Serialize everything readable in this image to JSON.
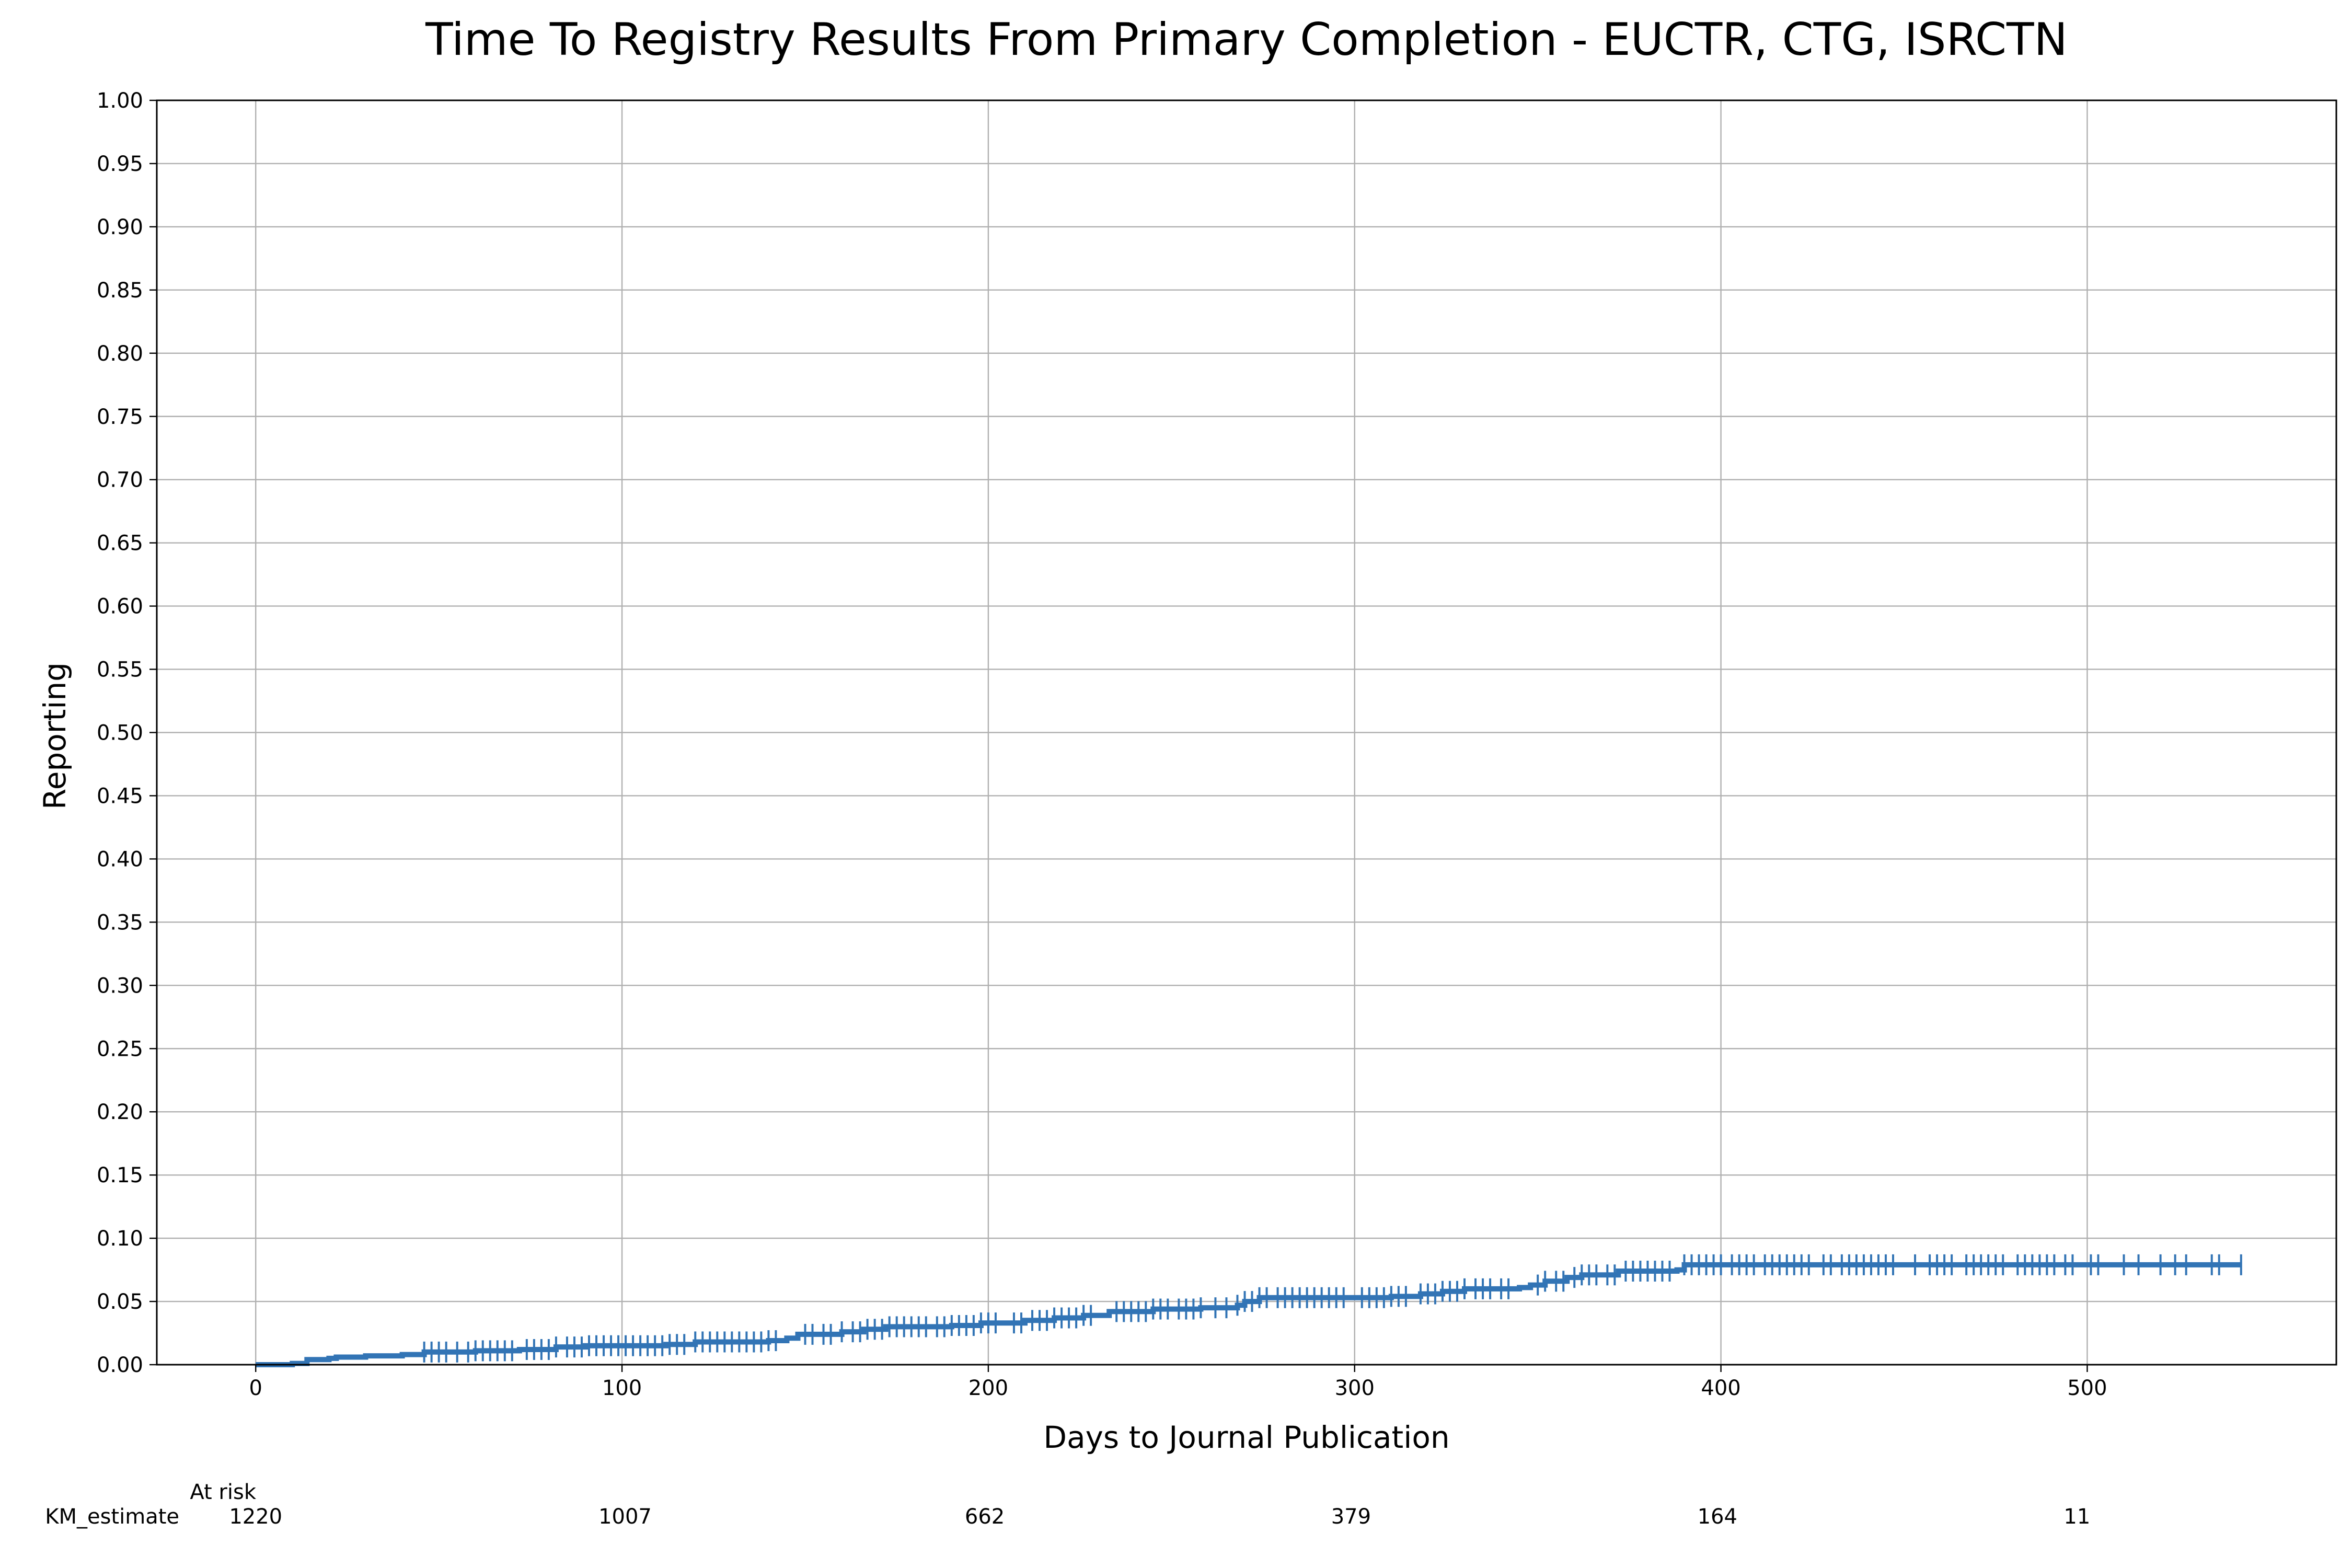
{
  "chart_data": {
    "type": "line",
    "title": "Time To Registry Results From Primary Completion - EUCTR, CTG, ISRCTN",
    "xlabel": "Days to Journal Publication",
    "ylabel": "Reporting",
    "xlim": [
      -27,
      568
    ],
    "ylim": [
      0,
      1
    ],
    "x_ticks": [
      0,
      100,
      200,
      300,
      400,
      500
    ],
    "y_ticks": [
      "0.00",
      "0.05",
      "0.10",
      "0.15",
      "0.20",
      "0.25",
      "0.30",
      "0.35",
      "0.40",
      "0.45",
      "0.50",
      "0.55",
      "0.60",
      "0.65",
      "0.70",
      "0.75",
      "0.80",
      "0.85",
      "0.90",
      "0.95",
      "1.00"
    ],
    "grid": true,
    "series_color": "#3274b5",
    "series": [
      {
        "name": "KM_estimate",
        "steps": [
          [
            0,
            0.0
          ],
          [
            10,
            0.001
          ],
          [
            14,
            0.004
          ],
          [
            20,
            0.005
          ],
          [
            22,
            0.006
          ],
          [
            30,
            0.007
          ],
          [
            40,
            0.008
          ],
          [
            46,
            0.01
          ],
          [
            60,
            0.011
          ],
          [
            72,
            0.012
          ],
          [
            82,
            0.014
          ],
          [
            90,
            0.015
          ],
          [
            112,
            0.016
          ],
          [
            120,
            0.018
          ],
          [
            140,
            0.019
          ],
          [
            145,
            0.021
          ],
          [
            148,
            0.024
          ],
          [
            160,
            0.026
          ],
          [
            166,
            0.028
          ],
          [
            172,
            0.03
          ],
          [
            190,
            0.031
          ],
          [
            198,
            0.033
          ],
          [
            210,
            0.035
          ],
          [
            218,
            0.037
          ],
          [
            226,
            0.039
          ],
          [
            233,
            0.042
          ],
          [
            245,
            0.044
          ],
          [
            258,
            0.045
          ],
          [
            268,
            0.047
          ],
          [
            270,
            0.05
          ],
          [
            274,
            0.053
          ],
          [
            310,
            0.054
          ],
          [
            318,
            0.056
          ],
          [
            324,
            0.058
          ],
          [
            330,
            0.06
          ],
          [
            345,
            0.061
          ],
          [
            348,
            0.063
          ],
          [
            352,
            0.066
          ],
          [
            358,
            0.069
          ],
          [
            362,
            0.071
          ],
          [
            372,
            0.074
          ],
          [
            388,
            0.075
          ],
          [
            390,
            0.079
          ],
          [
            542,
            0.079
          ]
        ],
        "censor_x": [
          46,
          48,
          50,
          52,
          55,
          58,
          60,
          62,
          64,
          66,
          68,
          70,
          74,
          76,
          78,
          80,
          82,
          85,
          87,
          89,
          91,
          93,
          95,
          97,
          99,
          101,
          103,
          105,
          107,
          109,
          111,
          113,
          115,
          117,
          120,
          122,
          124,
          126,
          128,
          130,
          132,
          134,
          136,
          138,
          140,
          142,
          150,
          152,
          155,
          157,
          160,
          163,
          165,
          167,
          169,
          171,
          173,
          175,
          177,
          179,
          181,
          183,
          186,
          188,
          190,
          192,
          194,
          196,
          198,
          200,
          202,
          207,
          209,
          212,
          214,
          216,
          218,
          220,
          222,
          224,
          226,
          228,
          235,
          237,
          239,
          241,
          243,
          245,
          247,
          249,
          252,
          254,
          256,
          258,
          262,
          265,
          268,
          270,
          272,
          274,
          276,
          279,
          281,
          283,
          285,
          287,
          289,
          291,
          293,
          295,
          297,
          302,
          304,
          306,
          308,
          310,
          312,
          314,
          318,
          320,
          322,
          324,
          326,
          328,
          330,
          333,
          335,
          337,
          340,
          342,
          350,
          352,
          355,
          357,
          360,
          362,
          364,
          366,
          369,
          371,
          374,
          376,
          378,
          380,
          382,
          384,
          386,
          390,
          392,
          394,
          396,
          398,
          400,
          403,
          405,
          407,
          409,
          412,
          414,
          416,
          418,
          420,
          422,
          424,
          428,
          430,
          433,
          435,
          437,
          439,
          441,
          443,
          445,
          447,
          453,
          457,
          459,
          461,
          463,
          467,
          469,
          471,
          473,
          475,
          477,
          481,
          483,
          485,
          487,
          489,
          491,
          494,
          496,
          501,
          503,
          510,
          514,
          520,
          524,
          527,
          534,
          536,
          542
        ]
      }
    ],
    "at_risk": {
      "header": "At risk",
      "row_label": "KM_estimate",
      "times": [
        0,
        100,
        200,
        300,
        400,
        500
      ],
      "values": [
        "1220",
        "1007",
        "662",
        "379",
        "164",
        "11"
      ]
    }
  }
}
